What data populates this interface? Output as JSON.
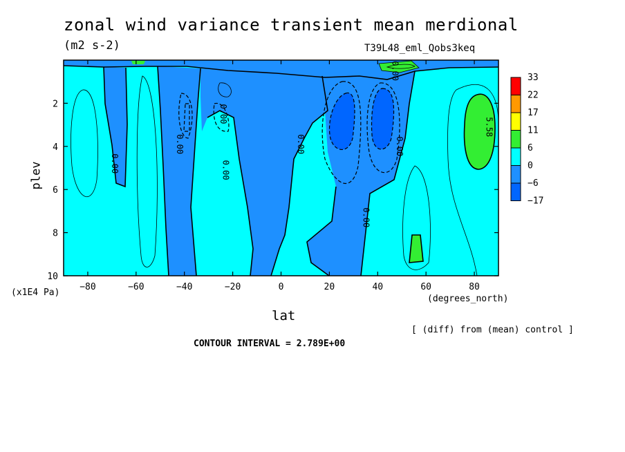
{
  "title": "zonal wind variance transient mean merdional",
  "units": "(m2 s-2)",
  "run_label": "T39L48_eml_Qobs3keq",
  "diff_note": "[ (diff) from (mean) control ]",
  "contour_interval": "CONTOUR INTERVAL = 2.789E+00",
  "chart_data": {
    "type": "contour",
    "xlabel": "lat",
    "ylabel": "plev",
    "x_units": "(degrees_north)",
    "y_units": "(x1E4 Pa)",
    "xlim": [
      -90,
      90
    ],
    "ylim": [
      10,
      0
    ],
    "xticks": [
      -80,
      -60,
      -40,
      -20,
      0,
      20,
      40,
      60,
      80
    ],
    "yticks": [
      2,
      4,
      6,
      8,
      10
    ],
    "contour_labels": [
      {
        "text": "0.00",
        "lat": -70,
        "plev": 4.8
      },
      {
        "text": "0.00",
        "lat": -43,
        "plev": 3.9
      },
      {
        "text": "0.00",
        "lat": -25,
        "plev": 2.5
      },
      {
        "text": "0.00",
        "lat": -24,
        "plev": 5.1
      },
      {
        "text": "0.00",
        "lat": 7,
        "plev": 3.9
      },
      {
        "text": "0.00",
        "lat": 34,
        "plev": 7.3
      },
      {
        "text": "0.00",
        "lat": 48,
        "plev": 4.0
      },
      {
        "text": "0.00",
        "lat": 46,
        "plev": 0.5
      },
      {
        "text": "5.58",
        "lat": 85,
        "plev": 3.1
      }
    ],
    "colorbar": {
      "labels": [
        "33",
        "22",
        "17",
        "11",
        "6",
        "0",
        "-6",
        "-17"
      ],
      "colors": [
        "#ff0000",
        "#ff9900",
        "#ffff00",
        "#33ee33",
        "#00ffff",
        "#1e90ff",
        "#0066ff"
      ]
    },
    "fill_colors": {
      "positive_low": "#00ffff",
      "near_zero_negative": "#1e90ff",
      "negative": "#0066ff",
      "positive_mid": "#33ee33"
    },
    "grid": false
  }
}
